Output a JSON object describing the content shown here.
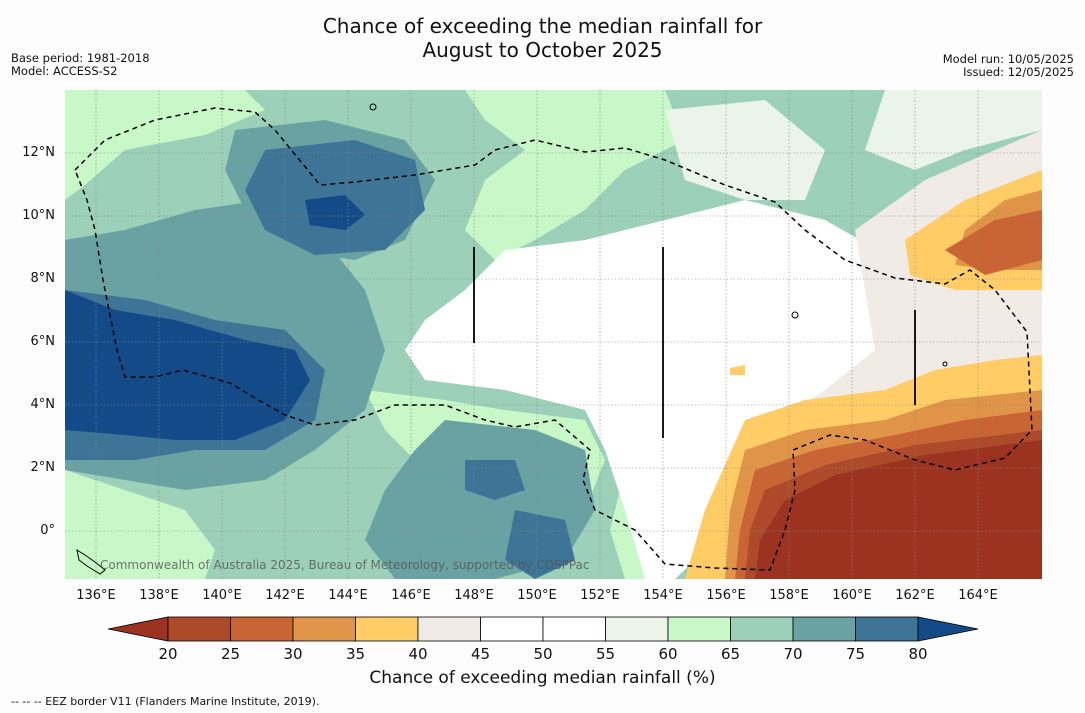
{
  "title_line1": "Chance of exceeding the median rainfall for",
  "title_line2": "August to October 2025",
  "meta_left": [
    "Base period: 1981-2018",
    "Model: ACCESS-S2"
  ],
  "meta_right": [
    "Model run: 10/05/2025",
    "Issued: 12/05/2025"
  ],
  "credit": "Commonwealth of Australia 2025, Bureau of Meteorology, supported by COSPPac",
  "axes": {
    "lat_labels": [
      "12°N",
      "10°N",
      "8°N",
      "6°N",
      "4°N",
      "2°N",
      "0°"
    ],
    "lon_labels": [
      "136°E",
      "138°E",
      "140°E",
      "142°E",
      "144°E",
      "146°E",
      "148°E",
      "150°E",
      "152°E",
      "154°E",
      "156°E",
      "158°E",
      "160°E",
      "162°E",
      "164°E"
    ]
  },
  "colorbar": {
    "title": "Chance of exceeding median rainfall (%)",
    "ticks": [
      "20",
      "25",
      "30",
      "35",
      "40",
      "45",
      "50",
      "55",
      "60",
      "65",
      "70",
      "75",
      "80"
    ],
    "colors": [
      "#9b3320",
      "#ad4a2a",
      "#c96535",
      "#e09448",
      "#ffcc66",
      "#f0ebe5",
      "#ffffff",
      "#ffffff",
      "#eaf4e8",
      "#c8f7c8",
      "#9cd0b8",
      "#6aa2a4",
      "#3e7496",
      "#124b88"
    ],
    "under_color": "#9b3320",
    "over_color": "#124b88"
  },
  "footnote": "-- -- -- EEZ border V11 (Flanders Marine Institute, 2019)."
}
